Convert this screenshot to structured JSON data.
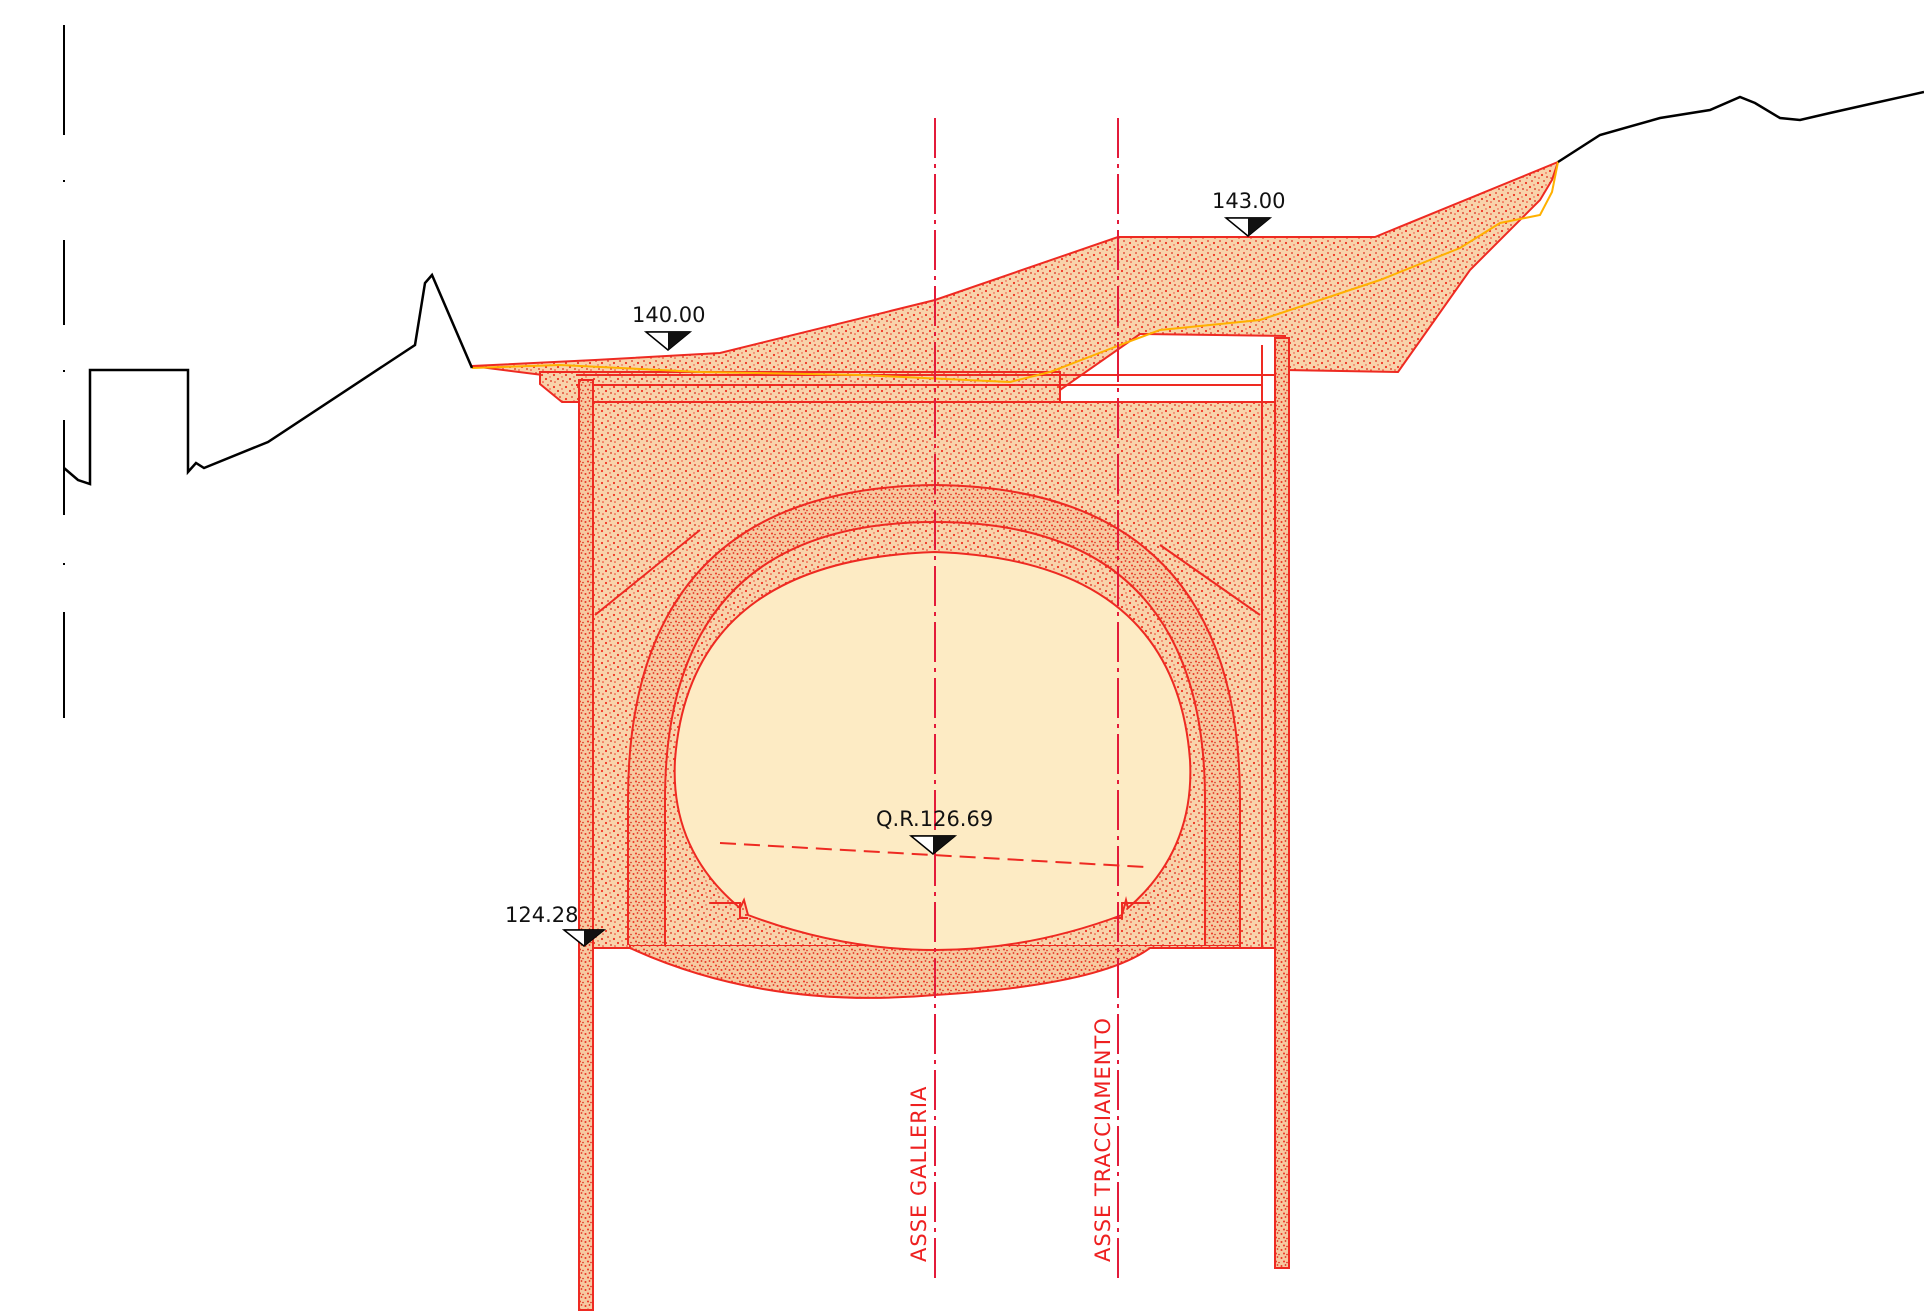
{
  "elevations": {
    "left_top": "140.00",
    "right_top": "143.00",
    "crown": "Q.R.126.69",
    "base": "124.28"
  },
  "axes": {
    "gallery": "ASSE  GALLERIA",
    "tracing": "ASSE  TRACCIAMENTO"
  },
  "colors": {
    "concrete_fill": "#f7cfa4",
    "concrete_dots": "#ee3322",
    "outline": "#ee2a22",
    "interior_fill": "#fdebc4",
    "ground": "#000000",
    "axis": "#e31b3a",
    "existing_profile": "#ffb000"
  }
}
